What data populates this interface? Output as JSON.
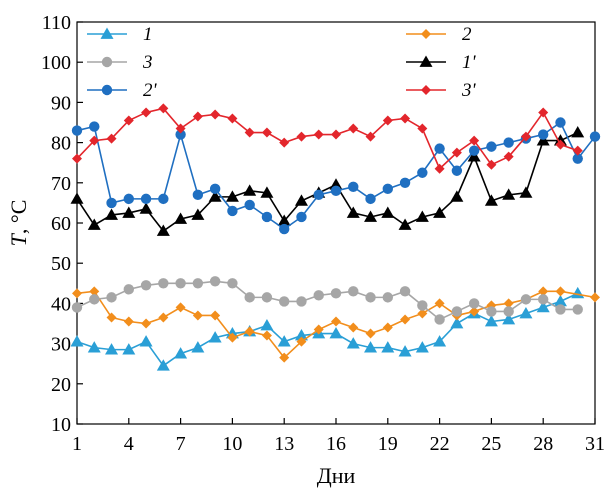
{
  "chart_data": {
    "type": "line",
    "xlabel": "Дни",
    "ylabel_italic": "T",
    "ylabel_unit": ", °C",
    "xlim": [
      1,
      31
    ],
    "ylim": [
      10,
      110
    ],
    "xticks": [
      1,
      4,
      7,
      10,
      13,
      16,
      19,
      22,
      25,
      28,
      31
    ],
    "yticks": [
      10,
      20,
      30,
      40,
      50,
      60,
      70,
      80,
      90,
      100,
      110
    ],
    "grid": false,
    "legend_position": "top",
    "series": [
      {
        "name": "1",
        "color": "#2a9fd6",
        "marker": "triangle",
        "x": [
          1,
          2,
          3,
          4,
          5,
          6,
          7,
          8,
          9,
          10,
          11,
          12,
          13,
          14,
          15,
          16,
          17,
          18,
          19,
          20,
          21,
          22,
          23,
          24,
          25,
          26,
          27,
          28,
          29,
          30
        ],
        "values": [
          30.5,
          29,
          28.5,
          28.5,
          30.5,
          24.5,
          27.5,
          29,
          31.5,
          32.5,
          33,
          34.5,
          30.5,
          32,
          32.5,
          32.5,
          30,
          29,
          29,
          28,
          29,
          30.5,
          35,
          37.5,
          35.5,
          36,
          37.5,
          39,
          40.5,
          42.5
        ]
      },
      {
        "name": "2",
        "color": "#f28e1c",
        "marker": "diamond",
        "x": [
          1,
          2,
          3,
          4,
          5,
          6,
          7,
          8,
          9,
          10,
          11,
          12,
          13,
          14,
          15,
          16,
          17,
          18,
          19,
          20,
          21,
          22,
          23,
          24,
          25,
          26,
          27,
          28,
          29,
          31
        ],
        "values": [
          42.5,
          43,
          36.5,
          35.5,
          35,
          36.5,
          39,
          37,
          37,
          31.5,
          33,
          32,
          26.5,
          30.5,
          33.5,
          35.5,
          34,
          32.5,
          34,
          36,
          37.5,
          40,
          37,
          38,
          39.5,
          40,
          41,
          43,
          43,
          41.5
        ]
      },
      {
        "name": "3",
        "color": "#a6a6a6",
        "marker": "circle",
        "x": [
          1,
          2,
          3,
          4,
          5,
          6,
          7,
          8,
          9,
          10,
          11,
          12,
          13,
          14,
          15,
          16,
          17,
          18,
          19,
          20,
          21,
          22,
          23,
          24,
          25,
          26,
          27,
          28,
          29,
          30
        ],
        "values": [
          39,
          41,
          41.5,
          43.5,
          44.5,
          45,
          45,
          45,
          45.5,
          45,
          41.5,
          41.5,
          40.5,
          40.5,
          42,
          42.5,
          43,
          41.5,
          41.5,
          43,
          39.5,
          36,
          38,
          40,
          38,
          38,
          41,
          41,
          38.5,
          38.5
        ]
      },
      {
        "name": "1'",
        "color": "#000000",
        "marker": "triangle",
        "x": [
          1,
          2,
          3,
          4,
          5,
          6,
          7,
          8,
          9,
          10,
          11,
          12,
          13,
          14,
          15,
          16,
          17,
          18,
          19,
          20,
          21,
          22,
          23,
          24,
          25,
          26,
          27,
          28,
          29,
          30
        ],
        "values": [
          66,
          59.5,
          62,
          62.5,
          63.5,
          58,
          61,
          62,
          66.5,
          66.5,
          68,
          67.5,
          60.5,
          65.5,
          67.5,
          69.5,
          62.5,
          61.5,
          62.5,
          59.5,
          61.5,
          62.5,
          66.5,
          76.5,
          65.5,
          67,
          67.5,
          80.5,
          80.5,
          82.5
        ]
      },
      {
        "name": "2'",
        "color": "#1f6fc1",
        "marker": "circle",
        "x": [
          1,
          2,
          3,
          4,
          5,
          6,
          7,
          8,
          9,
          10,
          11,
          12,
          13,
          14,
          15,
          16,
          17,
          18,
          19,
          20,
          21,
          22,
          23,
          24,
          25,
          26,
          27,
          28,
          29,
          30,
          31
        ],
        "values": [
          83,
          84,
          65,
          66,
          66,
          66,
          82,
          67,
          68.5,
          63,
          64.5,
          61.5,
          58.5,
          61.5,
          67,
          68,
          69,
          66,
          68.5,
          70,
          72.5,
          78.5,
          73,
          78,
          79,
          80,
          81,
          82,
          85,
          76,
          81.5
        ]
      },
      {
        "name": "3'",
        "color": "#e3262c",
        "marker": "diamond",
        "x": [
          1,
          2,
          3,
          4,
          5,
          6,
          7,
          8,
          9,
          10,
          11,
          12,
          13,
          14,
          15,
          16,
          17,
          18,
          19,
          20,
          21,
          22,
          23,
          24,
          25,
          26,
          27,
          28,
          29,
          30
        ],
        "values": [
          76,
          80.5,
          81,
          85.5,
          87.5,
          88.5,
          83.5,
          86.5,
          87,
          86,
          82.5,
          82.5,
          80,
          81.5,
          82,
          82,
          83.5,
          81.5,
          85.5,
          86,
          83.5,
          73.5,
          77.5,
          80.5,
          74.5,
          76.5,
          81.5,
          87.5,
          79.5,
          78
        ]
      }
    ]
  }
}
